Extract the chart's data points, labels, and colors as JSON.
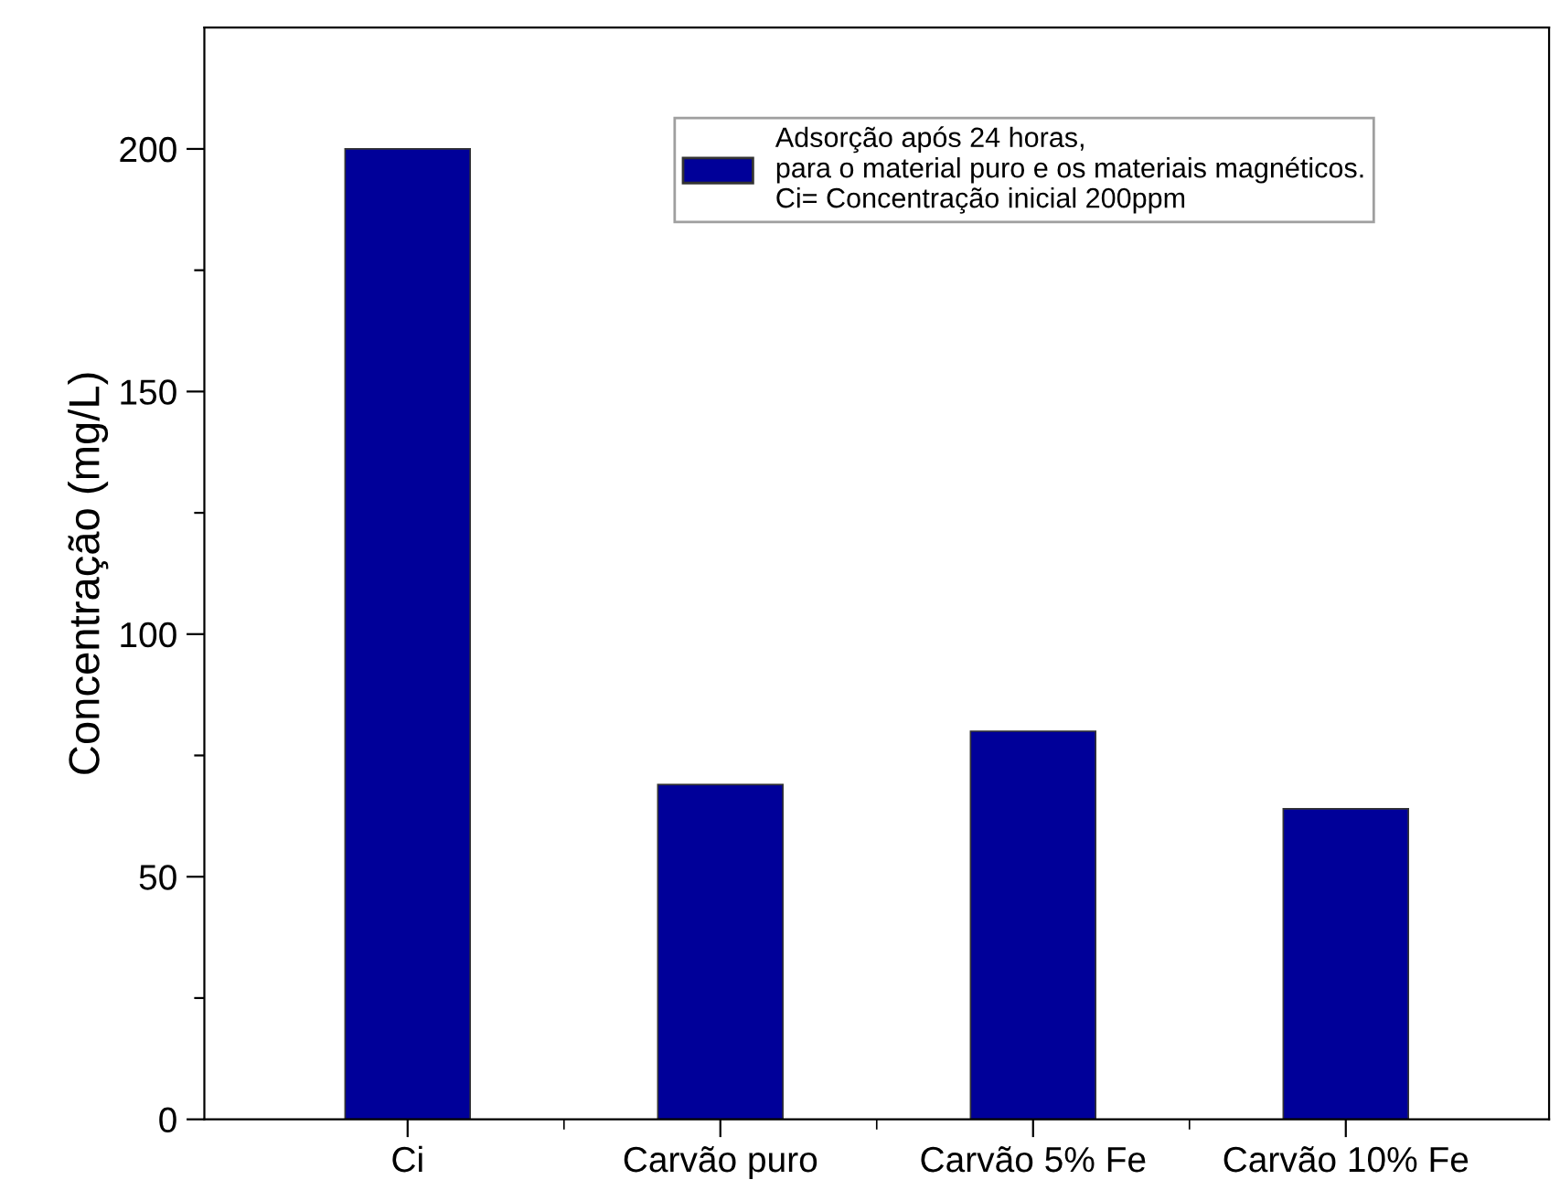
{
  "chart_data": {
    "type": "bar",
    "ylabel": "Concentração (mg/L)",
    "categories": [
      "Ci",
      "Carvão puro",
      "Carvão 5% Fe",
      "Carvão 10% Fe"
    ],
    "series": [
      {
        "name": "Adsorção após 24 horas,\npara o material puro e os materiais magnéticos.\nCi= Concentração inicial 200ppm",
        "color": "#000099",
        "values": [
          200,
          69,
          80,
          64
        ]
      }
    ],
    "ylim": [
      0,
      225
    ],
    "yticks": [
      0,
      {
        "value": 25,
        "label": null
      },
      50,
      {
        "value": 75,
        "label": null
      },
      100,
      {
        "value": 125,
        "label": null
      },
      150,
      {
        "value": 175,
        "label": null
      },
      200
    ],
    "legend": "top right",
    "grid": false
  }
}
